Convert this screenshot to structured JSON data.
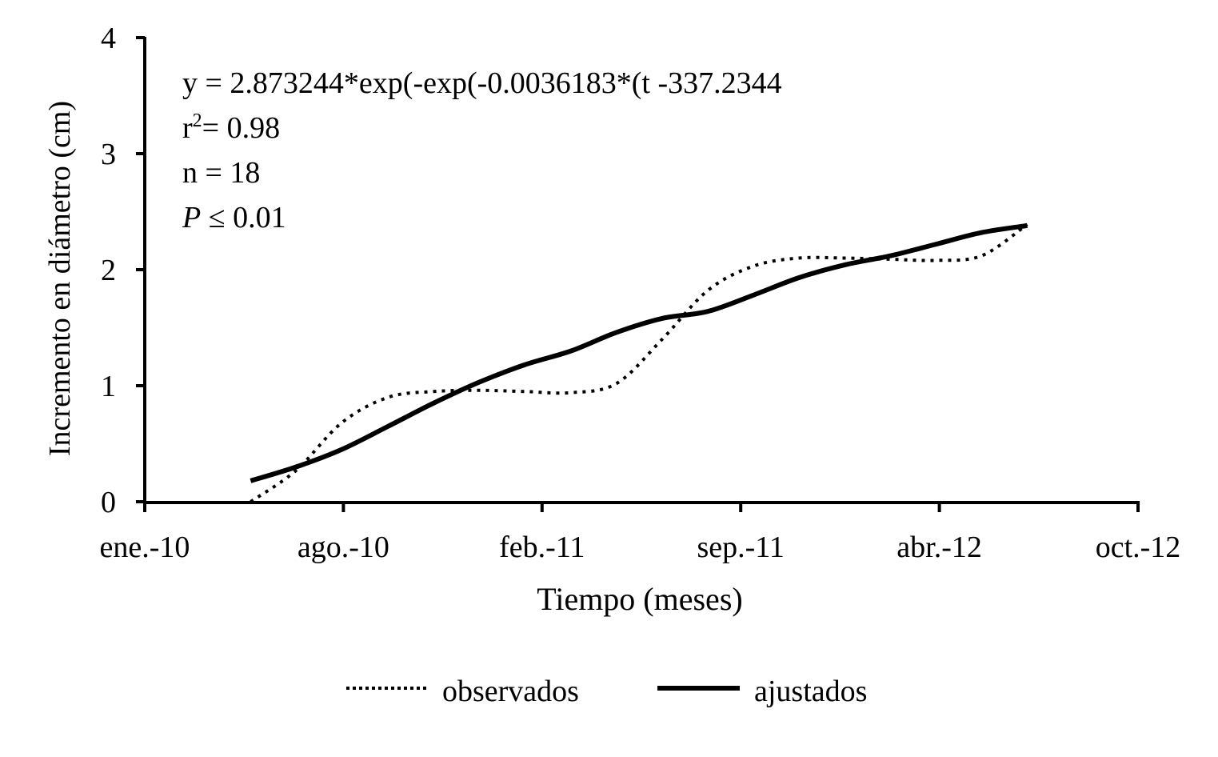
{
  "chart_data": {
    "type": "line",
    "xlabel": "Tiempo (meses)",
    "ylabel": "Incremento en diámetro (cm)",
    "x_ticks": [
      "ene.-10",
      "ago.-10",
      "feb.-11",
      "sep.-11",
      "abr.-12",
      "oct.-12"
    ],
    "xlim": [
      "2010-01-01",
      "2012-10-01"
    ],
    "ylim": [
      0,
      4
    ],
    "y_ticks": [
      0,
      1,
      2,
      3,
      4
    ],
    "grid": false,
    "legend_position": "bottom",
    "annotations": {
      "equation": "y = 2.873244*exp(-exp(-0.0036183*(t  -337.2344",
      "r2_label": "r",
      "r2_sup": "2",
      "r2_value": "= 0.98",
      "n": "n = 18",
      "p_symbol": "P",
      "p_value": " ≤ 0.01"
    },
    "x": [
      "2010-04-18",
      "2010-06-03",
      "2010-07-19",
      "2010-09-04",
      "2010-10-20",
      "2010-12-05",
      "2011-01-20",
      "2011-03-08",
      "2011-04-23",
      "2011-06-08",
      "2011-07-24",
      "2011-09-08",
      "2011-10-24",
      "2011-12-09",
      "2012-01-25",
      "2012-03-11",
      "2012-04-26",
      "2012-06-11"
    ],
    "series": [
      {
        "name": "observados",
        "style": "dotted",
        "color": "#000000",
        "values": [
          0.0,
          0.27,
          0.68,
          0.9,
          0.95,
          0.96,
          0.95,
          0.94,
          1.02,
          1.4,
          1.82,
          2.03,
          2.1,
          2.1,
          2.09,
          2.08,
          2.12,
          2.39
        ]
      },
      {
        "name": "ajustados",
        "style": "solid",
        "color": "#000000",
        "values": [
          0.18,
          0.3,
          0.45,
          0.65,
          0.85,
          1.03,
          1.18,
          1.3,
          1.46,
          1.58,
          1.64,
          1.78,
          1.93,
          2.04,
          2.12,
          2.22,
          2.32,
          2.38
        ]
      }
    ]
  }
}
